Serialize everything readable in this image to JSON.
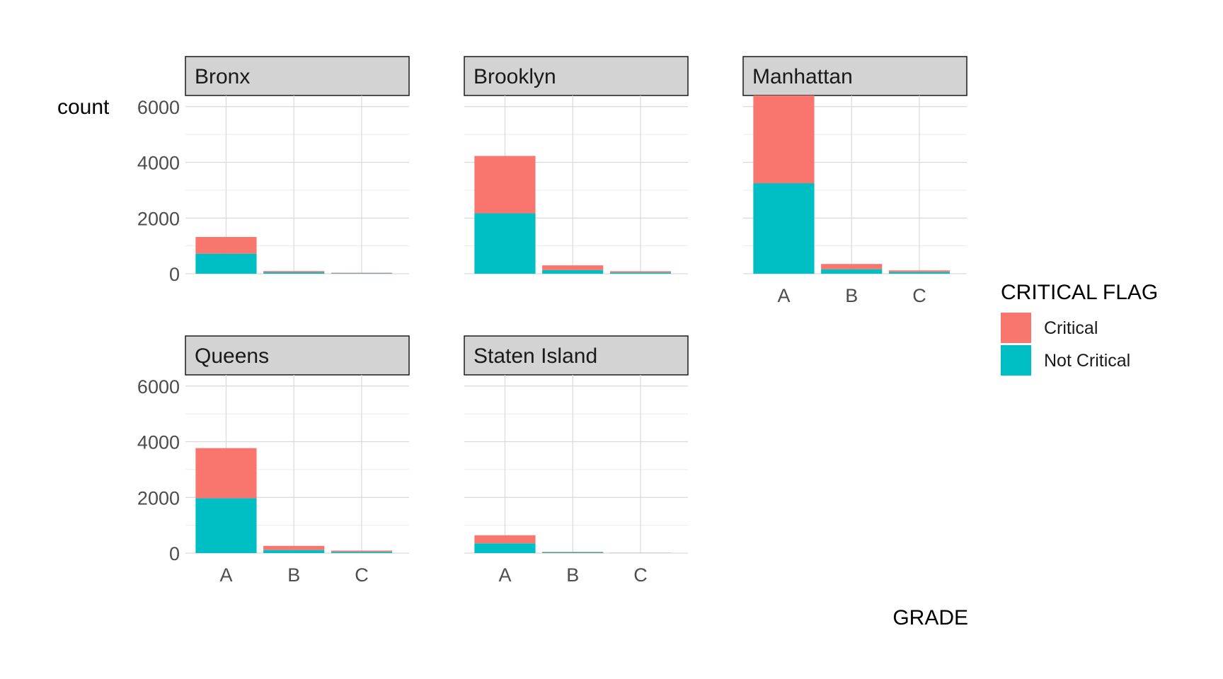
{
  "chart_data": {
    "type": "bar",
    "stacked": true,
    "facet_type": "facet_wrap",
    "categories": [
      "A",
      "B",
      "C"
    ],
    "xlabel": "GRADE",
    "ylabel": "count",
    "ylim": [
      0,
      6400
    ],
    "yticks": [
      "0",
      "2000",
      "4000",
      "6000"
    ],
    "grid": true,
    "legend": {
      "title": "CRITICAL FLAG",
      "position": "right",
      "entries": [
        {
          "name": "Critical",
          "color": "#F8766D"
        },
        {
          "name": "Not Critical",
          "color": "#00BFC4"
        }
      ]
    },
    "panels": [
      {
        "title": "Bronx",
        "series": [
          {
            "name": "Not Critical",
            "values": [
              720,
              50,
              15
            ]
          },
          {
            "name": "Critical",
            "values": [
              600,
              45,
              20
            ]
          }
        ]
      },
      {
        "title": "Brooklyn",
        "series": [
          {
            "name": "Not Critical",
            "values": [
              2170,
              130,
              45
            ]
          },
          {
            "name": "Critical",
            "values": [
              2060,
              170,
              45
            ]
          }
        ]
      },
      {
        "title": "Manhattan",
        "series": [
          {
            "name": "Not Critical",
            "values": [
              3250,
              160,
              60
            ]
          },
          {
            "name": "Critical",
            "values": [
              3150,
              190,
              60
            ]
          }
        ]
      },
      {
        "title": "Queens",
        "series": [
          {
            "name": "Not Critical",
            "values": [
              1970,
              110,
              45
            ]
          },
          {
            "name": "Critical",
            "values": [
              1800,
              150,
              45
            ]
          }
        ]
      },
      {
        "title": "Staten Island",
        "series": [
          {
            "name": "Not Critical",
            "values": [
              350,
              25,
              5
            ]
          },
          {
            "name": "Critical",
            "values": [
              290,
              20,
              5
            ]
          }
        ]
      }
    ]
  }
}
